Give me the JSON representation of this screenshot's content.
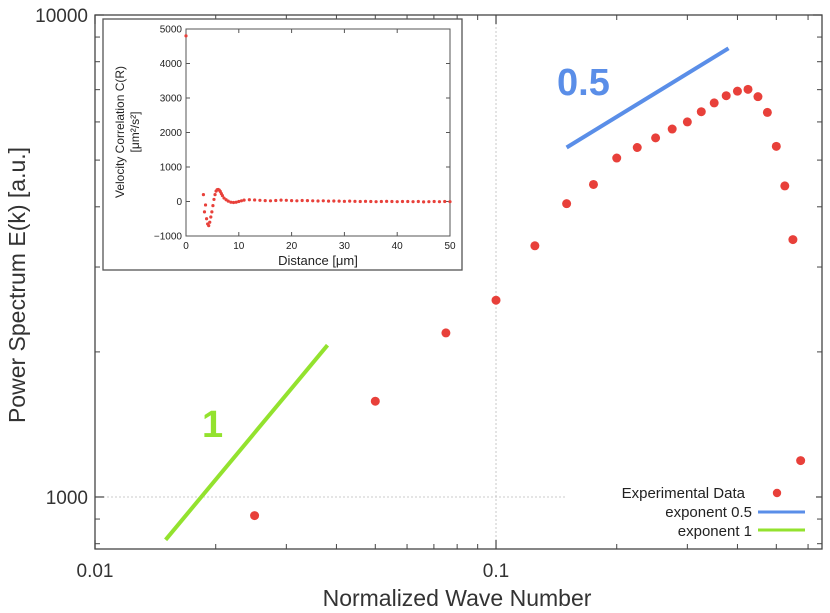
{
  "chart_data": [
    {
      "type": "scatter",
      "xlabel": "Normalized Wave Number",
      "ylabel": "Power Spectrum E(k) [a.u.]",
      "xscale": "log",
      "yscale": "log",
      "xlim": [
        0.01,
        0.65
      ],
      "ylim": [
        780,
        10000
      ],
      "x_ticks": [
        0.01,
        0.1
      ],
      "x_tick_labels": [
        "0.01",
        "0.1"
      ],
      "y_ticks": [
        1000,
        10000
      ],
      "y_tick_labels": [
        "1000",
        "10000"
      ],
      "grid": true,
      "legend_position": "bottom-right",
      "series": [
        {
          "name": "Experimental Data",
          "color": "#e8403a",
          "marker": "circle",
          "x": [
            0.025,
            0.05,
            0.075,
            0.1,
            0.125,
            0.15,
            0.175,
            0.2,
            0.225,
            0.25,
            0.275,
            0.3,
            0.325,
            0.35,
            0.375,
            0.4,
            0.425,
            0.45,
            0.475,
            0.5,
            0.525,
            0.55,
            0.575
          ],
          "y": [
            915,
            1580,
            2190,
            2560,
            3320,
            4060,
            4450,
            5050,
            5310,
            5560,
            5800,
            6000,
            6300,
            6570,
            6800,
            6950,
            7010,
            6770,
            6280,
            5340,
            4420,
            3420,
            1190
          ]
        },
        {
          "name": "exponent 0.5",
          "color": "#5a8ee8",
          "style": "line",
          "x": [
            0.15,
            0.38
          ],
          "y": [
            5310,
            8530
          ],
          "annotation": "0.5"
        },
        {
          "name": "exponent 1",
          "color": "#93e22e",
          "style": "line",
          "x": [
            0.015,
            0.038
          ],
          "y": [
            815,
            2065
          ],
          "annotation": "1"
        }
      ],
      "inset": {
        "type": "scatter",
        "xlabel": "Distance [μm]",
        "ylabel_line1": "Velocity Correlation C(R)",
        "ylabel_line2": "[μm²/s²]",
        "xlim": [
          0,
          50
        ],
        "ylim": [
          -1000,
          5000
        ],
        "x_ticks": [
          0,
          10,
          20,
          30,
          40,
          50
        ],
        "x_tick_labels": [
          "0",
          "10",
          "20",
          "30",
          "40",
          "50"
        ],
        "y_ticks": [
          -1000,
          0,
          1000,
          2000,
          3000,
          4000,
          5000
        ],
        "y_tick_labels": [
          "−1000",
          "0",
          "1000",
          "2000",
          "3000",
          "4000",
          "5000"
        ],
        "color": "#e8403a",
        "x": [
          0.0,
          3.3,
          3.5,
          3.7,
          3.9,
          4.1,
          4.3,
          4.5,
          4.7,
          4.9,
          5.1,
          5.3,
          5.5,
          5.7,
          5.9,
          6.1,
          6.3,
          6.5,
          6.7,
          6.9,
          7.2,
          7.6,
          8.0,
          8.5,
          9.0,
          9.5,
          10.0,
          10.5,
          11.0,
          12.0,
          13.0,
          14.0,
          15.0,
          16.0,
          17.0,
          18.0,
          19.0,
          20.0,
          21.0,
          22.0,
          23.0,
          24.0,
          25.0,
          26.0,
          27.0,
          28.0,
          29.0,
          30.0,
          31.0,
          32.0,
          33.0,
          34.0,
          35.0,
          36.0,
          37.0,
          38.0,
          39.0,
          40.0,
          41.0,
          42.0,
          43.0,
          44.0,
          45.0,
          46.0,
          47.0,
          48.0,
          49.0,
          50.0
        ],
        "y": [
          4800,
          200,
          -300,
          -100,
          -500,
          -650,
          -700,
          -600,
          -450,
          -300,
          -120,
          60,
          200,
          300,
          340,
          350,
          330,
          290,
          230,
          170,
          100,
          50,
          10,
          -20,
          -30,
          -20,
          0,
          20,
          40,
          50,
          45,
          35,
          25,
          20,
          30,
          40,
          35,
          25,
          20,
          30,
          25,
          20,
          15,
          20,
          10,
          15,
          10,
          5,
          10,
          5,
          0,
          5,
          0,
          -5,
          0,
          5,
          0,
          -5,
          0,
          0,
          -5,
          0,
          -10,
          -5,
          0,
          -5,
          0,
          -5
        ]
      }
    }
  ]
}
